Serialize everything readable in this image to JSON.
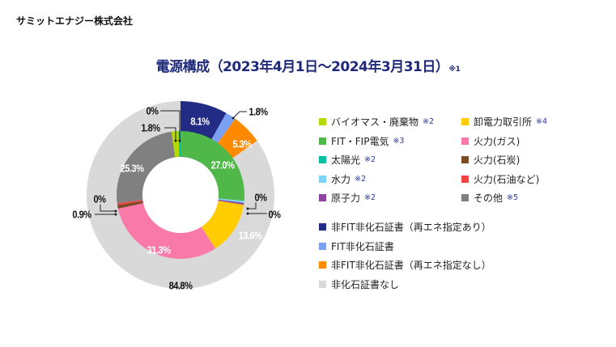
{
  "company": "サミットエナジー株式会社",
  "chart_data": {
    "type": "pie",
    "title": "電源構成（2023年4月1日～2024年3月31日）",
    "title_note": "※1",
    "inner_ring": {
      "name": "電源構成",
      "slices": [
        {
          "key": "fit",
          "label": "FIT・FIP電気",
          "value": 27.0,
          "display": "27.0%",
          "color": "#50b848"
        },
        {
          "key": "hydro",
          "label": "水力",
          "value": 0,
          "display": "0%",
          "color": "#7dd3f7"
        },
        {
          "key": "nuclear",
          "label": "原子力",
          "value": 0,
          "display": "0%",
          "color": "#8e44a0"
        },
        {
          "key": "wholesale",
          "label": "卸電力取引所",
          "value": 13.6,
          "display": "13.6%",
          "color": "#ffcc00"
        },
        {
          "key": "gas",
          "label": "火力(ガス)",
          "value": 31.3,
          "display": "31.3%",
          "color": "#f97aa9"
        },
        {
          "key": "coal",
          "label": "火力(石炭)",
          "value": 0.9,
          "display": "0.9%",
          "color": "#7b4a26"
        },
        {
          "key": "oil",
          "label": "火力(石油など)",
          "value": 0,
          "display": "0%",
          "color": "#ef4444"
        },
        {
          "key": "other",
          "label": "その他",
          "value": 25.3,
          "display": "25.3%",
          "color": "#808080"
        },
        {
          "key": "biomass",
          "label": "バイオマス・廃棄物",
          "value": 1.8,
          "display": "1.8%",
          "color": "#b5d900"
        },
        {
          "key": "solar",
          "label": "太陽光",
          "value": 0,
          "display": "0%",
          "color": "#00bfa5"
        }
      ]
    },
    "outer_ring": {
      "name": "非化石証書",
      "slices": [
        {
          "key": "nonfit_re",
          "label": "非FIT非化石証書（再エネ指定あり）",
          "value": 8.1,
          "display": "8.1%",
          "color": "#232c85"
        },
        {
          "key": "fit_cert",
          "label": "FIT非化石証書",
          "value": 1.8,
          "display": "1.8%",
          "color": "#7aa0f5"
        },
        {
          "key": "nonfit_nore",
          "label": "非FIT非化石証書（再エネ指定なし）",
          "value": 5.3,
          "display": "5.3%",
          "color": "#ff8a00"
        },
        {
          "key": "none",
          "label": "非化石証書なし",
          "value": 84.8,
          "display": "84.8%",
          "color": "#d9d9d9"
        }
      ]
    }
  },
  "legend": {
    "col1": [
      {
        "label": "バイオマス・廃棄物",
        "note": "※2",
        "color": "#b5d900"
      },
      {
        "label": "FIT・FIP電気",
        "note": "※3",
        "color": "#50b848"
      },
      {
        "label": "太陽光",
        "note": "※2",
        "color": "#00bfa5"
      },
      {
        "label": "水力",
        "note": "※2",
        "color": "#7dd3f7"
      },
      {
        "label": "原子力",
        "note": "※2",
        "color": "#8e44a0"
      }
    ],
    "col2": [
      {
        "label": "卸電力取引所",
        "note": "※4",
        "color": "#ffcc00"
      },
      {
        "label": "火力(ガス)",
        "note": "",
        "color": "#f97aa9"
      },
      {
        "label": "火力(石炭)",
        "note": "",
        "color": "#7b4a26"
      },
      {
        "label": "火力(石油など)",
        "note": "",
        "color": "#ef4444"
      },
      {
        "label": "その他",
        "note": "※5",
        "color": "#808080"
      }
    ],
    "certs": [
      {
        "label": "非FIT非化石証書（再エネ指定あり）",
        "color": "#232c85"
      },
      {
        "label": "FIT非化石証書",
        "color": "#7aa0f5"
      },
      {
        "label": "非FIT非化石証書（再エネ指定なし）",
        "color": "#ff8a00"
      },
      {
        "label": "非化石証書なし",
        "color": "#d9d9d9"
      }
    ]
  }
}
